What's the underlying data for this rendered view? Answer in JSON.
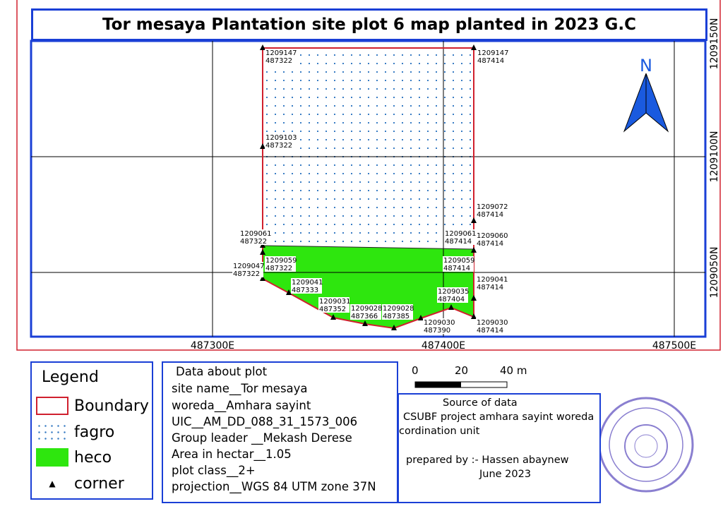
{
  "title": "Tor mesaya Plantation site plot 6 map planted in 2023 G.C",
  "north_arrow": {
    "label": "N"
  },
  "grid": {
    "x_labels": [
      "487300E",
      "487400E",
      "487500E"
    ],
    "y_labels": [
      "1209150N",
      "1209100N",
      "1209050N"
    ]
  },
  "points": [
    {
      "n": "1209147",
      "e": "487322"
    },
    {
      "n": "1209147",
      "e": "487414"
    },
    {
      "n": "1209103",
      "e": "487322"
    },
    {
      "n": "1209072",
      "e": "487414"
    },
    {
      "n": "1209061",
      "e": "487322"
    },
    {
      "n": "1209061",
      "e": "487414"
    },
    {
      "n": "1209060",
      "e": "487414"
    },
    {
      "n": "1209059",
      "e": "487322"
    },
    {
      "n": "1209047",
      "e": "487322"
    },
    {
      "n": "1209059",
      "e": "487414"
    },
    {
      "n": "1209041",
      "e": "487333"
    },
    {
      "n": "1209031",
      "e": "487352"
    },
    {
      "n": "1209028",
      "e": "487366"
    },
    {
      "n": "1209028",
      "e": "487385"
    },
    {
      "n": "1209030",
      "e": "487390"
    },
    {
      "n": "1209035",
      "e": "487404"
    },
    {
      "n": "1209041",
      "e": "487414"
    },
    {
      "n": "1209030",
      "e": "487414"
    }
  ],
  "legend": {
    "title": "Legend",
    "items": [
      {
        "label": "Boundary"
      },
      {
        "label": "fagro"
      },
      {
        "label": "heco"
      },
      {
        "label": "corner"
      }
    ]
  },
  "plot_info": {
    "lines": [
      "Data about plot",
      "site name__Tor mesaya",
      "woreda__Amhara sayint",
      "UIC__AM_DD_088_31_1573_006",
      "Group leader __Mekash Derese",
      "Area in hectar__1.05",
      "plot class__2+",
      "projection__WGS 84 UTM zone 37N"
    ]
  },
  "scale_bar": {
    "labels": [
      "0",
      "20",
      "40 m"
    ]
  },
  "source": {
    "title": "Source of data",
    "line1": "CSUBF project amhara sayint woreda",
    "line2": "cordination unit",
    "prepared": "prepared by :- Hassen abaynew",
    "date": "June 2023"
  },
  "colors": {
    "boundary": "#d0202e",
    "heco": "#2ee60e",
    "fagro_dot": "#3a7dc4",
    "frame": "#1a3fd6"
  }
}
